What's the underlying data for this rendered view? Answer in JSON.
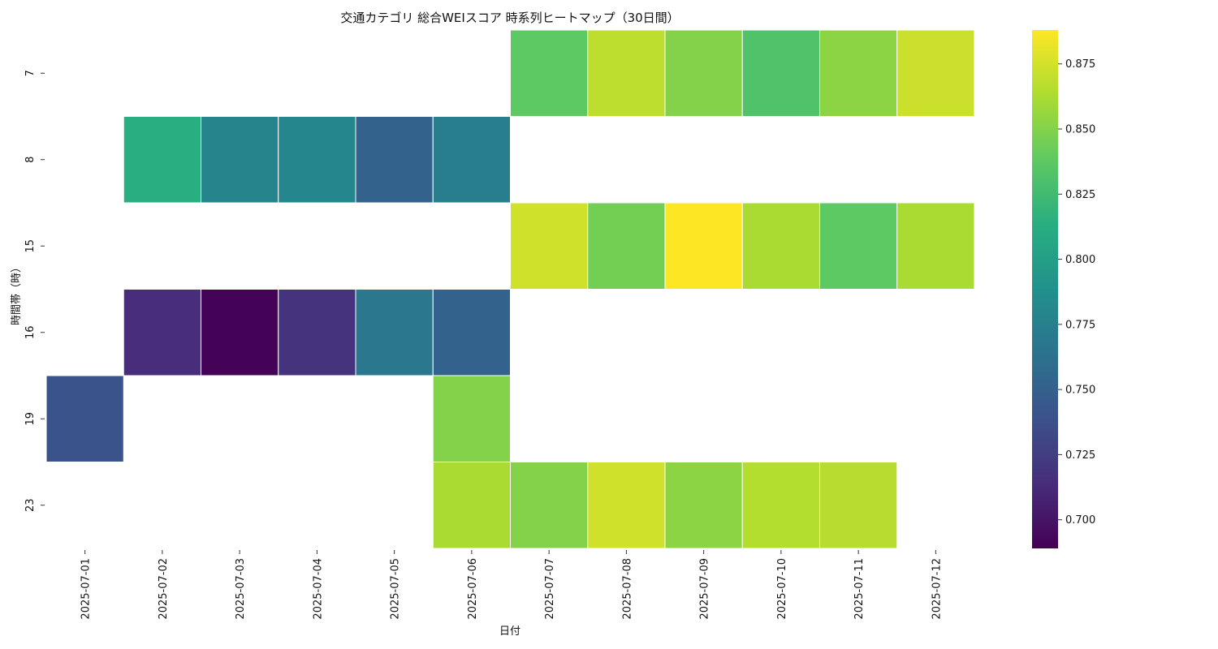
{
  "chart_data": {
    "type": "heatmap",
    "title": "交通カテゴリ 総合WEIスコア 時系列ヒートマップ（30日間）",
    "xlabel": "日付",
    "ylabel": "時間帯（時）",
    "x": [
      "2025-07-01",
      "2025-07-02",
      "2025-07-03",
      "2025-07-04",
      "2025-07-05",
      "2025-07-06",
      "2025-07-07",
      "2025-07-08",
      "2025-07-09",
      "2025-07-10",
      "2025-07-11",
      "2025-07-12"
    ],
    "y": [
      "7",
      "8",
      "15",
      "16",
      "19",
      "23"
    ],
    "values": [
      [
        null,
        null,
        null,
        null,
        null,
        null,
        0.838,
        0.868,
        0.85,
        0.832,
        0.853,
        0.872
      ],
      [
        null,
        0.813,
        0.778,
        0.78,
        0.752,
        0.773,
        null,
        null,
        null,
        null,
        null,
        null
      ],
      [
        null,
        null,
        null,
        null,
        null,
        null,
        0.874,
        0.845,
        0.888,
        0.862,
        0.838,
        0.862
      ],
      [
        null,
        0.714,
        0.69,
        0.718,
        0.768,
        0.752,
        null,
        null,
        null,
        null,
        null,
        null
      ],
      [
        0.74,
        null,
        null,
        null,
        null,
        0.85,
        null,
        null,
        null,
        null,
        null,
        null
      ],
      [
        null,
        null,
        null,
        null,
        null,
        0.862,
        0.85,
        0.874,
        0.853,
        0.865,
        0.866,
        null
      ]
    ],
    "colormap": "viridis",
    "colorbar": {
      "range": [
        0.689,
        0.888
      ],
      "ticks": [
        "0.700",
        "0.725",
        "0.750",
        "0.775",
        "0.800",
        "0.825",
        "0.850",
        "0.875"
      ]
    },
    "grid": false
  }
}
